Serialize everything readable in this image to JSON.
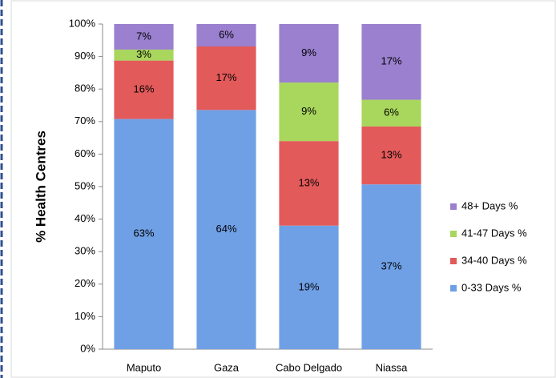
{
  "chart_data": {
    "type": "bar",
    "stacking": "percent",
    "y_label": "% Health Centres",
    "categories": [
      "Maputo",
      "Gaza",
      "Cabo Delgado",
      "Niassa"
    ],
    "series": [
      {
        "name": "0-33 Days %",
        "color": "#6fa0e6",
        "values": [
          63,
          64,
          19,
          37
        ],
        "value_labels": [
          "63%",
          "64%",
          "19%",
          "37%"
        ]
      },
      {
        "name": "34-40 Days %",
        "color": "#e35a5a",
        "values": [
          16,
          17,
          13,
          13
        ],
        "value_labels": [
          "16%",
          "17%",
          "13%",
          "13%"
        ]
      },
      {
        "name": "41-47 Days %",
        "color": "#a9d65c",
        "values": [
          3,
          0,
          9,
          6
        ],
        "value_labels": [
          "3%",
          null,
          "9%",
          "6%"
        ]
      },
      {
        "name": "48+ Days %",
        "color": "#9a80cf",
        "values": [
          7,
          6,
          9,
          17
        ],
        "value_labels": [
          "7%",
          "6%",
          "9%",
          "17%"
        ]
      }
    ],
    "ylim": [
      0,
      100
    ],
    "yticks": [
      {
        "value": 0,
        "label": "0%"
      },
      {
        "value": 10,
        "label": "10%"
      },
      {
        "value": 20,
        "label": "20%"
      },
      {
        "value": 30,
        "label": "30%"
      },
      {
        "value": 40,
        "label": "40%"
      },
      {
        "value": 50,
        "label": "50%"
      },
      {
        "value": 60,
        "label": "60%"
      },
      {
        "value": 70,
        "label": "70%"
      },
      {
        "value": 80,
        "label": "80%"
      },
      {
        "value": 90,
        "label": "90%"
      },
      {
        "value": 100,
        "label": "100%"
      }
    ],
    "legend": "right"
  }
}
